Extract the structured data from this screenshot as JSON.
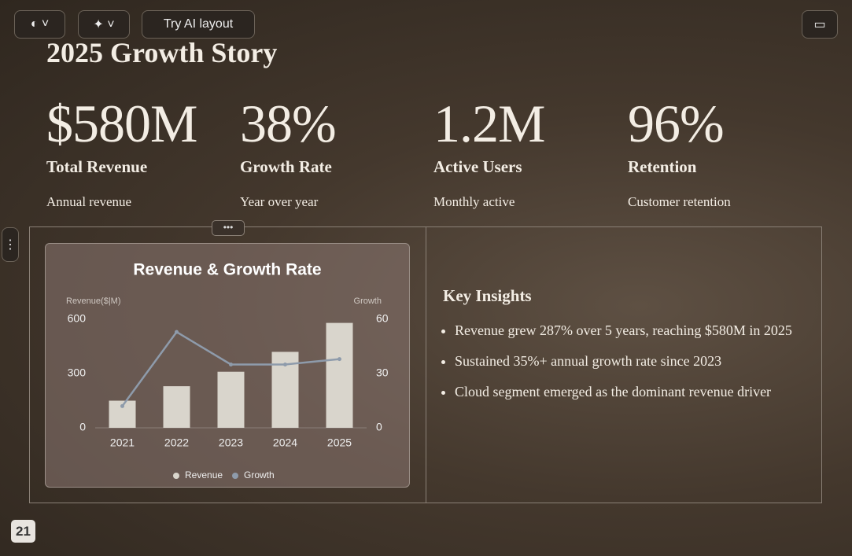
{
  "toolbar": {
    "ai_layout_button": "Try AI layout"
  },
  "slide": {
    "title": "2025 Growth Story",
    "stats": [
      {
        "value": "$580M",
        "label": "Total Revenue",
        "description": "Annual revenue"
      },
      {
        "value": "38%",
        "label": "Growth Rate",
        "description": "Year over year"
      },
      {
        "value": "1.2M",
        "label": "Active Users",
        "description": "Monthly active"
      },
      {
        "value": "96%",
        "label": "Retention",
        "description": "Customer retention"
      }
    ],
    "insights": {
      "title": "Key Insights",
      "items": [
        "Revenue grew 287% over 5 years, reaching $580M in 2025",
        "Sustained 35%+ annual growth rate since 2023",
        "Cloud segment emerged as the dominant revenue driver"
      ]
    }
  },
  "chart_data": {
    "type": "bar_line",
    "title": "Revenue & Growth Rate",
    "y_label": "Revenue($|M)",
    "y2_label": "Growth",
    "categories": [
      "2021",
      "2022",
      "2023",
      "2024",
      "2025"
    ],
    "series": [
      {
        "name": "Revenue",
        "type": "bar",
        "color": "#d9d5cc",
        "values": [
          150,
          230,
          310,
          420,
          580
        ]
      },
      {
        "name": "Growth",
        "type": "line",
        "axis": "y2",
        "color": "#8e9bab",
        "values": [
          12,
          53,
          35,
          35,
          38
        ]
      }
    ],
    "ylim": [
      0,
      600
    ],
    "yticks": [
      0,
      300,
      600
    ],
    "y2lim": [
      0,
      60
    ],
    "y2ticks": [
      0,
      30,
      60
    ],
    "grid": false,
    "legend": "bottom"
  },
  "page_number": "21"
}
